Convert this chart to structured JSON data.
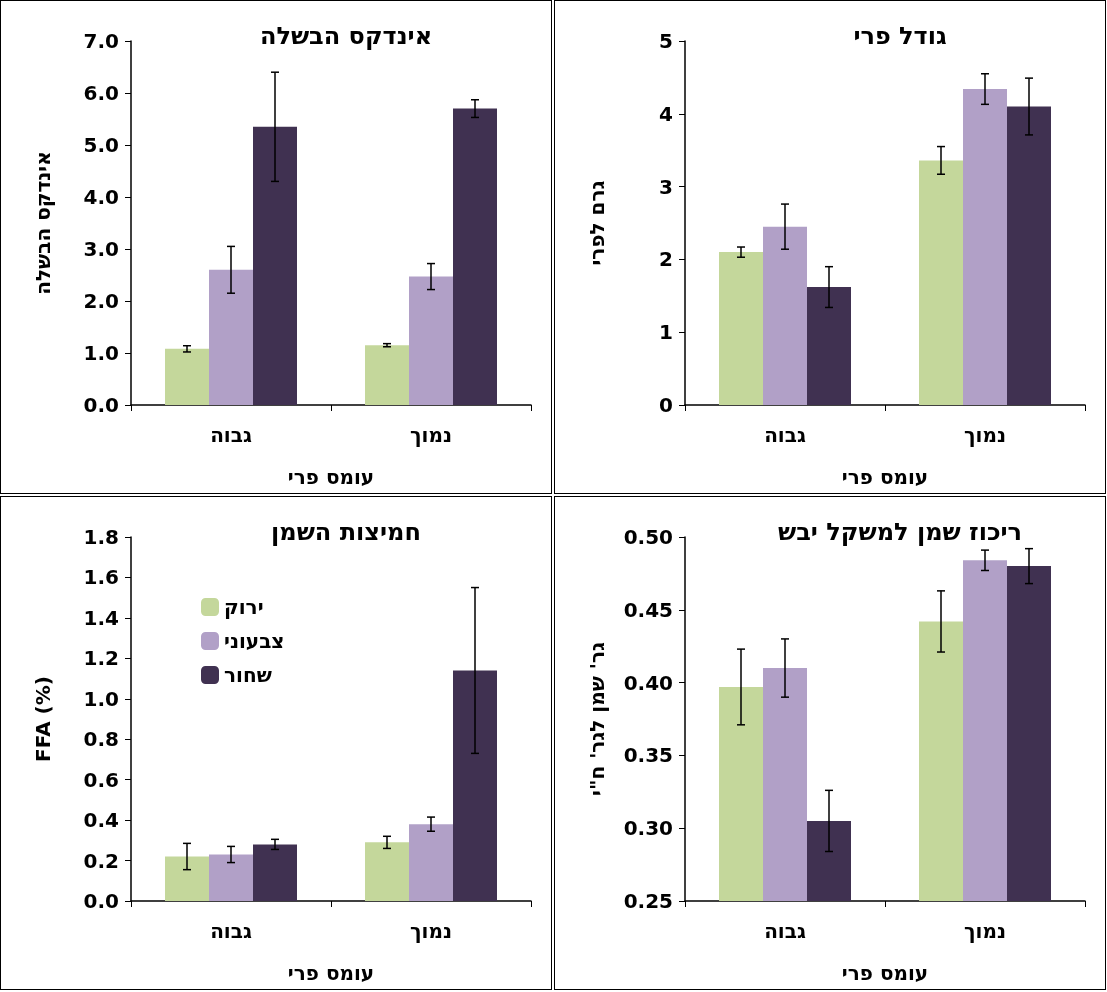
{
  "chart_data": [
    {
      "type": "bar",
      "title": "אינדקס הבשלה",
      "xlabel": "עומס פרי",
      "ylabel": "אינדקס הבשלה",
      "categories": [
        "גבוה",
        "נמוך"
      ],
      "ylim": [
        0,
        7
      ],
      "yticks": [
        {
          "value": 0,
          "label": "0.0"
        },
        {
          "value": 1,
          "label": "1.0"
        },
        {
          "value": 2,
          "label": "2.0"
        },
        {
          "value": 3,
          "label": "3.0"
        },
        {
          "value": 4,
          "label": "4.0"
        },
        {
          "value": 5,
          "label": "5.0"
        },
        {
          "value": 6,
          "label": "6.0"
        },
        {
          "value": 7,
          "label": "7.0"
        }
      ],
      "grid": false,
      "legend": false,
      "series": [
        {
          "color": "#c4d79b",
          "values": [
            1.08,
            1.15
          ],
          "errors": [
            0.06,
            0.03
          ]
        },
        {
          "color": "#b1a0c7",
          "values": [
            2.6,
            2.47
          ],
          "errors": [
            0.45,
            0.25
          ]
        },
        {
          "color": "#403151",
          "values": [
            5.35,
            5.7
          ],
          "errors": [
            1.05,
            0.17
          ]
        }
      ]
    },
    {
      "type": "bar",
      "title": "גודל פרי",
      "xlabel": "עומס פרי",
      "ylabel": "גרם לפרי",
      "categories": [
        "גבוה",
        "נמוך"
      ],
      "ylim": [
        0,
        5
      ],
      "yticks": [
        0,
        1,
        2,
        3,
        4,
        5
      ],
      "grid": false,
      "legend": false,
      "series": [
        {
          "color": "#c4d79b",
          "values": [
            2.1,
            3.36
          ],
          "errors": [
            0.07,
            0.19
          ]
        },
        {
          "color": "#b1a0c7",
          "values": [
            2.45,
            4.34
          ],
          "errors": [
            0.31,
            0.21
          ]
        },
        {
          "color": "#403151",
          "values": [
            1.62,
            4.1
          ],
          "errors": [
            0.28,
            0.39
          ]
        }
      ]
    },
    {
      "type": "bar",
      "title": "חמיצות השמן",
      "xlabel": "עומס פרי",
      "ylabel": "FFA (%)",
      "categories": [
        "גבוה",
        "נמוך"
      ],
      "ylim": [
        0,
        1.8
      ],
      "yticks": [
        {
          "value": 0,
          "label": "0.0"
        },
        {
          "value": 0.2,
          "label": "0.2"
        },
        {
          "value": 0.4,
          "label": "0.4"
        },
        {
          "value": 0.6,
          "label": "0.6"
        },
        {
          "value": 0.8,
          "label": "0.8"
        },
        {
          "value": 1,
          "label": "1.0"
        },
        {
          "value": 1.2,
          "label": "1.2"
        },
        {
          "value": 1.4,
          "label": "1.4"
        },
        {
          "value": 1.6,
          "label": "1.6"
        },
        {
          "value": 1.8,
          "label": "1.8"
        }
      ],
      "grid": false,
      "legend": "top left",
      "series": [
        {
          "name": "ירוק",
          "color": "#c4d79b",
          "values": [
            0.22,
            0.29
          ],
          "errors": [
            0.065,
            0.03
          ]
        },
        {
          "name": "צבעוני",
          "color": "#b1a0c7",
          "values": [
            0.23,
            0.38
          ],
          "errors": [
            0.04,
            0.035
          ]
        },
        {
          "name": "שחור",
          "color": "#403151",
          "values": [
            0.28,
            1.14
          ],
          "errors": [
            0.025,
            0.41
          ]
        }
      ]
    },
    {
      "type": "bar",
      "title": "ריכוז שמן למשקל יבש",
      "xlabel": "עומס פרי",
      "ylabel": "גר' שמן לגר' ח\"י",
      "categories": [
        "גבוה",
        "נמוך"
      ],
      "ylim": [
        0.25,
        0.5
      ],
      "yticks": [
        {
          "value": 0.25,
          "label": "0.25"
        },
        {
          "value": 0.3,
          "label": "0.30"
        },
        {
          "value": 0.35,
          "label": "0.35"
        },
        {
          "value": 0.4,
          "label": "0.40"
        },
        {
          "value": 0.45,
          "label": "0.45"
        },
        {
          "value": 0.5,
          "label": "0.50"
        }
      ],
      "grid": false,
      "legend": false,
      "series": [
        {
          "color": "#c4d79b",
          "values": [
            0.397,
            0.442
          ],
          "errors": [
            0.026,
            0.021
          ]
        },
        {
          "color": "#b1a0c7",
          "values": [
            0.41,
            0.484
          ],
          "errors": [
            0.02,
            0.007
          ]
        },
        {
          "color": "#403151",
          "values": [
            0.305,
            0.48
          ],
          "errors": [
            0.021,
            0.012
          ]
        }
      ]
    }
  ]
}
